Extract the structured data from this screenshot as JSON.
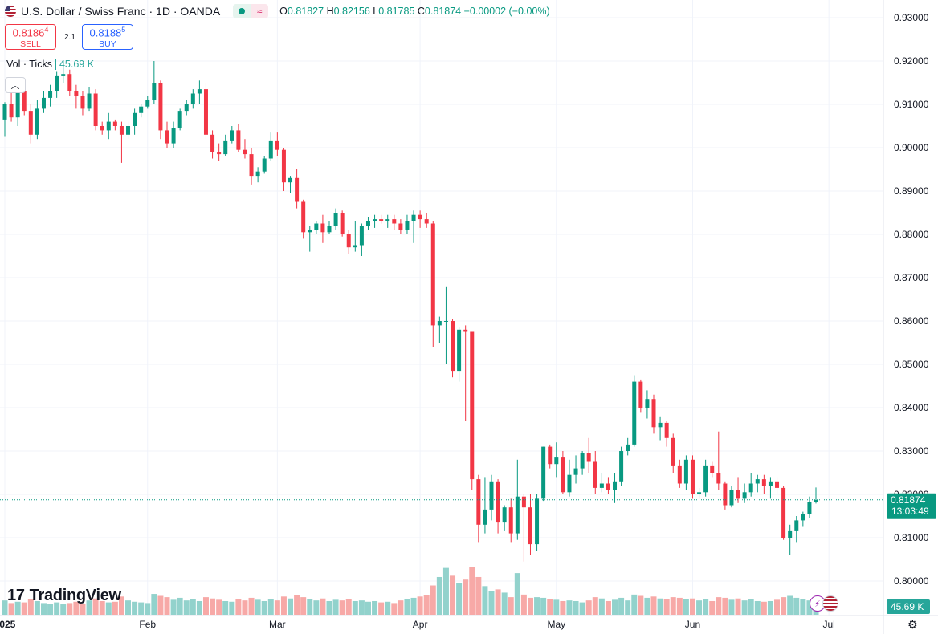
{
  "header": {
    "symbol": "U.S. Dollar / Swiss Franc · 1D · OANDA",
    "status_icon": "market-open-dot",
    "wave_icon": "≈",
    "ohlc": {
      "o_label": "O",
      "o": "0.81827",
      "h_label": "H",
      "h": "0.82156",
      "l_label": "L",
      "l": "0.81785",
      "c_label": "C",
      "c": "0.81874",
      "change": "−0.00002 (−0.00%)"
    }
  },
  "trade": {
    "sell_price_main": "0.8186",
    "sell_price_sup": "4",
    "sell_label": "SELL",
    "spread": "2.1",
    "buy_price_main": "0.8188",
    "buy_price_sup": "5",
    "buy_label": "BUY"
  },
  "volume_legend": {
    "label": "Vol · Ticks",
    "value": "45.69 K"
  },
  "collapse_icon": "chevron-up-icon",
  "logo": {
    "text": "TradingView",
    "mark": "17"
  },
  "price_tag": {
    "price": "0.81874",
    "countdown": "13:03:49"
  },
  "volume_tag": "45.69 K",
  "colors": {
    "up": "#089981",
    "down": "#f23645",
    "vol_up": "#92d2cc",
    "vol_down": "#f7a9a7",
    "grid": "#f0f3fa"
  },
  "chart_data": {
    "type": "candlestick",
    "title": "U.S. Dollar / Swiss Franc · 1D · OANDA",
    "ylim": [
      0.795,
      0.935
    ],
    "y_ticks": [
      "0.93000",
      "0.92000",
      "0.91000",
      "0.90000",
      "0.89000",
      "0.88000",
      "0.87000",
      "0.86000",
      "0.85000",
      "0.84000",
      "0.83000",
      "0.82000",
      "0.81000",
      "0.80000"
    ],
    "x_ticks": [
      "2025",
      "Feb",
      "Mar",
      "Apr",
      "May",
      "Jun",
      "Jul"
    ],
    "x_tick_index": [
      0,
      22,
      42,
      64,
      85,
      106,
      127
    ],
    "grid": true,
    "candles": [
      [
        0.9065,
        0.9105,
        0.9025,
        0.91,
        22
      ],
      [
        0.91,
        0.914,
        0.906,
        0.907,
        18
      ],
      [
        0.907,
        0.914,
        0.905,
        0.913,
        20
      ],
      [
        0.913,
        0.9145,
        0.9075,
        0.9085,
        19
      ],
      [
        0.9085,
        0.91,
        0.901,
        0.903,
        24
      ],
      [
        0.903,
        0.911,
        0.902,
        0.909,
        21
      ],
      [
        0.909,
        0.913,
        0.908,
        0.9115,
        18
      ],
      [
        0.9115,
        0.9145,
        0.9095,
        0.913,
        17
      ],
      [
        0.913,
        0.9175,
        0.9115,
        0.9165,
        19
      ],
      [
        0.9165,
        0.9185,
        0.915,
        0.917,
        16
      ],
      [
        0.917,
        0.918,
        0.912,
        0.913,
        18
      ],
      [
        0.913,
        0.9145,
        0.909,
        0.912,
        20
      ],
      [
        0.912,
        0.913,
        0.9075,
        0.909,
        17
      ],
      [
        0.909,
        0.914,
        0.9085,
        0.9125,
        22
      ],
      [
        0.9125,
        0.9135,
        0.904,
        0.905,
        25
      ],
      [
        0.905,
        0.906,
        0.903,
        0.904,
        21
      ],
      [
        0.904,
        0.908,
        0.902,
        0.906,
        19
      ],
      [
        0.906,
        0.9065,
        0.904,
        0.905,
        20
      ],
      [
        0.905,
        0.906,
        0.8965,
        0.903,
        28
      ],
      [
        0.903,
        0.906,
        0.902,
        0.905,
        22
      ],
      [
        0.905,
        0.909,
        0.903,
        0.908,
        20
      ],
      [
        0.908,
        0.91,
        0.907,
        0.9095,
        19
      ],
      [
        0.9095,
        0.912,
        0.909,
        0.911,
        18
      ],
      [
        0.911,
        0.92,
        0.91,
        0.915,
        32
      ],
      [
        0.915,
        0.9155,
        0.902,
        0.904,
        29
      ],
      [
        0.904,
        0.906,
        0.9,
        0.901,
        27
      ],
      [
        0.901,
        0.906,
        0.9,
        0.9045,
        23
      ],
      [
        0.9045,
        0.909,
        0.904,
        0.9085,
        26
      ],
      [
        0.9085,
        0.911,
        0.9075,
        0.91,
        22
      ],
      [
        0.91,
        0.9135,
        0.909,
        0.9125,
        24
      ],
      [
        0.9125,
        0.9155,
        0.91,
        0.9135,
        21
      ],
      [
        0.9135,
        0.915,
        0.902,
        0.903,
        27
      ],
      [
        0.903,
        0.904,
        0.8975,
        0.899,
        25
      ],
      [
        0.899,
        0.901,
        0.897,
        0.8985,
        23
      ],
      [
        0.8985,
        0.903,
        0.898,
        0.9015,
        21
      ],
      [
        0.9015,
        0.905,
        0.901,
        0.904,
        20
      ],
      [
        0.904,
        0.9055,
        0.899,
        0.8995,
        24
      ],
      [
        0.8995,
        0.902,
        0.8975,
        0.8985,
        22
      ],
      [
        0.8985,
        0.9,
        0.8915,
        0.8935,
        26
      ],
      [
        0.8935,
        0.8955,
        0.892,
        0.8945,
        23
      ],
      [
        0.8945,
        0.898,
        0.894,
        0.8975,
        21
      ],
      [
        0.8975,
        0.9035,
        0.897,
        0.9015,
        24
      ],
      [
        0.9015,
        0.9035,
        0.898,
        0.8995,
        22
      ],
      [
        0.8995,
        0.9,
        0.89,
        0.892,
        28
      ],
      [
        0.892,
        0.8935,
        0.8895,
        0.893,
        25
      ],
      [
        0.893,
        0.895,
        0.886,
        0.8875,
        30
      ],
      [
        0.8875,
        0.888,
        0.879,
        0.8805,
        27
      ],
      [
        0.8805,
        0.882,
        0.876,
        0.881,
        24
      ],
      [
        0.881,
        0.883,
        0.88,
        0.8825,
        22
      ],
      [
        0.8825,
        0.8845,
        0.878,
        0.8805,
        25
      ],
      [
        0.8805,
        0.883,
        0.88,
        0.882,
        21
      ],
      [
        0.882,
        0.886,
        0.881,
        0.885,
        23
      ],
      [
        0.885,
        0.8855,
        0.8795,
        0.88,
        22
      ],
      [
        0.88,
        0.881,
        0.8755,
        0.877,
        24
      ],
      [
        0.877,
        0.883,
        0.876,
        0.8775,
        21
      ],
      [
        0.8775,
        0.8825,
        0.875,
        0.882,
        22
      ],
      [
        0.882,
        0.884,
        0.881,
        0.883,
        20
      ],
      [
        0.883,
        0.8845,
        0.8815,
        0.8835,
        21
      ],
      [
        0.8835,
        0.8845,
        0.8825,
        0.883,
        19
      ],
      [
        0.883,
        0.8845,
        0.8815,
        0.8835,
        20
      ],
      [
        0.8835,
        0.8845,
        0.881,
        0.8825,
        18
      ],
      [
        0.8825,
        0.8835,
        0.88,
        0.881,
        22
      ],
      [
        0.881,
        0.8845,
        0.88,
        0.883,
        24
      ],
      [
        0.883,
        0.8855,
        0.878,
        0.8845,
        26
      ],
      [
        0.8845,
        0.8855,
        0.8815,
        0.8835,
        28
      ],
      [
        0.8835,
        0.885,
        0.8815,
        0.8825,
        30
      ],
      [
        0.8825,
        0.883,
        0.854,
        0.859,
        45
      ],
      [
        0.859,
        0.861,
        0.855,
        0.86,
        58
      ],
      [
        0.86,
        0.868,
        0.85,
        0.86,
        72
      ],
      [
        0.86,
        0.8605,
        0.847,
        0.8485,
        60
      ],
      [
        0.8485,
        0.8585,
        0.846,
        0.858,
        49
      ],
      [
        0.858,
        0.859,
        0.837,
        0.8575,
        54
      ],
      [
        0.8575,
        0.8575,
        0.821,
        0.8235,
        74
      ],
      [
        0.8235,
        0.8245,
        0.809,
        0.813,
        58
      ],
      [
        0.813,
        0.824,
        0.811,
        0.8165,
        44
      ],
      [
        0.8165,
        0.8245,
        0.814,
        0.823,
        36
      ],
      [
        0.823,
        0.8235,
        0.811,
        0.8135,
        39
      ],
      [
        0.8135,
        0.8175,
        0.8115,
        0.817,
        34
      ],
      [
        0.817,
        0.819,
        0.809,
        0.811,
        27
      ],
      [
        0.811,
        0.828,
        0.8095,
        0.8195,
        64
      ],
      [
        0.8195,
        0.82,
        0.8045,
        0.817,
        31
      ],
      [
        0.817,
        0.82,
        0.806,
        0.8085,
        26
      ],
      [
        0.8085,
        0.82,
        0.807,
        0.819,
        27
      ],
      [
        0.819,
        0.831,
        0.8185,
        0.831,
        26
      ],
      [
        0.831,
        0.8315,
        0.826,
        0.827,
        24
      ],
      [
        0.827,
        0.832,
        0.824,
        0.8285,
        23
      ],
      [
        0.8285,
        0.83,
        0.82,
        0.8205,
        21
      ],
      [
        0.8205,
        0.828,
        0.8195,
        0.8245,
        22
      ],
      [
        0.8245,
        0.829,
        0.8225,
        0.826,
        21
      ],
      [
        0.826,
        0.83,
        0.8245,
        0.8295,
        19
      ],
      [
        0.8295,
        0.833,
        0.825,
        0.8275,
        22
      ],
      [
        0.8275,
        0.83,
        0.82,
        0.8215,
        27
      ],
      [
        0.8215,
        0.825,
        0.8205,
        0.8225,
        25
      ],
      [
        0.8225,
        0.824,
        0.82,
        0.821,
        21
      ],
      [
        0.821,
        0.825,
        0.818,
        0.823,
        23
      ],
      [
        0.823,
        0.831,
        0.822,
        0.83,
        26
      ],
      [
        0.83,
        0.833,
        0.829,
        0.8315,
        22
      ],
      [
        0.8315,
        0.8475,
        0.831,
        0.846,
        31
      ],
      [
        0.846,
        0.8465,
        0.839,
        0.84,
        29
      ],
      [
        0.84,
        0.844,
        0.8375,
        0.842,
        26
      ],
      [
        0.842,
        0.843,
        0.834,
        0.8355,
        28
      ],
      [
        0.8355,
        0.838,
        0.8325,
        0.8365,
        25
      ],
      [
        0.8365,
        0.837,
        0.831,
        0.833,
        24
      ],
      [
        0.833,
        0.834,
        0.825,
        0.8265,
        27
      ],
      [
        0.8265,
        0.828,
        0.8215,
        0.8225,
        26
      ],
      [
        0.8225,
        0.829,
        0.821,
        0.828,
        24
      ],
      [
        0.828,
        0.829,
        0.819,
        0.82,
        25
      ],
      [
        0.82,
        0.8215,
        0.819,
        0.8205,
        22
      ],
      [
        0.8205,
        0.828,
        0.8195,
        0.8265,
        24
      ],
      [
        0.8265,
        0.8275,
        0.824,
        0.825,
        21
      ],
      [
        0.825,
        0.8345,
        0.821,
        0.8225,
        27
      ],
      [
        0.8225,
        0.823,
        0.8165,
        0.8175,
        26
      ],
      [
        0.8175,
        0.822,
        0.817,
        0.821,
        23
      ],
      [
        0.821,
        0.824,
        0.818,
        0.819,
        25
      ],
      [
        0.819,
        0.8225,
        0.818,
        0.8205,
        22
      ],
      [
        0.8205,
        0.825,
        0.8195,
        0.8225,
        24
      ],
      [
        0.8225,
        0.8245,
        0.8205,
        0.8235,
        21
      ],
      [
        0.8235,
        0.8245,
        0.82,
        0.822,
        20
      ],
      [
        0.822,
        0.824,
        0.819,
        0.823,
        21
      ],
      [
        0.823,
        0.824,
        0.82,
        0.8215,
        23
      ],
      [
        0.8215,
        0.822,
        0.8095,
        0.81,
        27
      ],
      [
        0.81,
        0.813,
        0.806,
        0.8115,
        29
      ],
      [
        0.8115,
        0.815,
        0.809,
        0.814,
        26
      ],
      [
        0.814,
        0.816,
        0.8125,
        0.8155,
        24
      ],
      [
        0.8155,
        0.8195,
        0.8145,
        0.8183,
        22
      ],
      [
        0.8183,
        0.8216,
        0.8179,
        0.8187,
        19
      ]
    ]
  }
}
